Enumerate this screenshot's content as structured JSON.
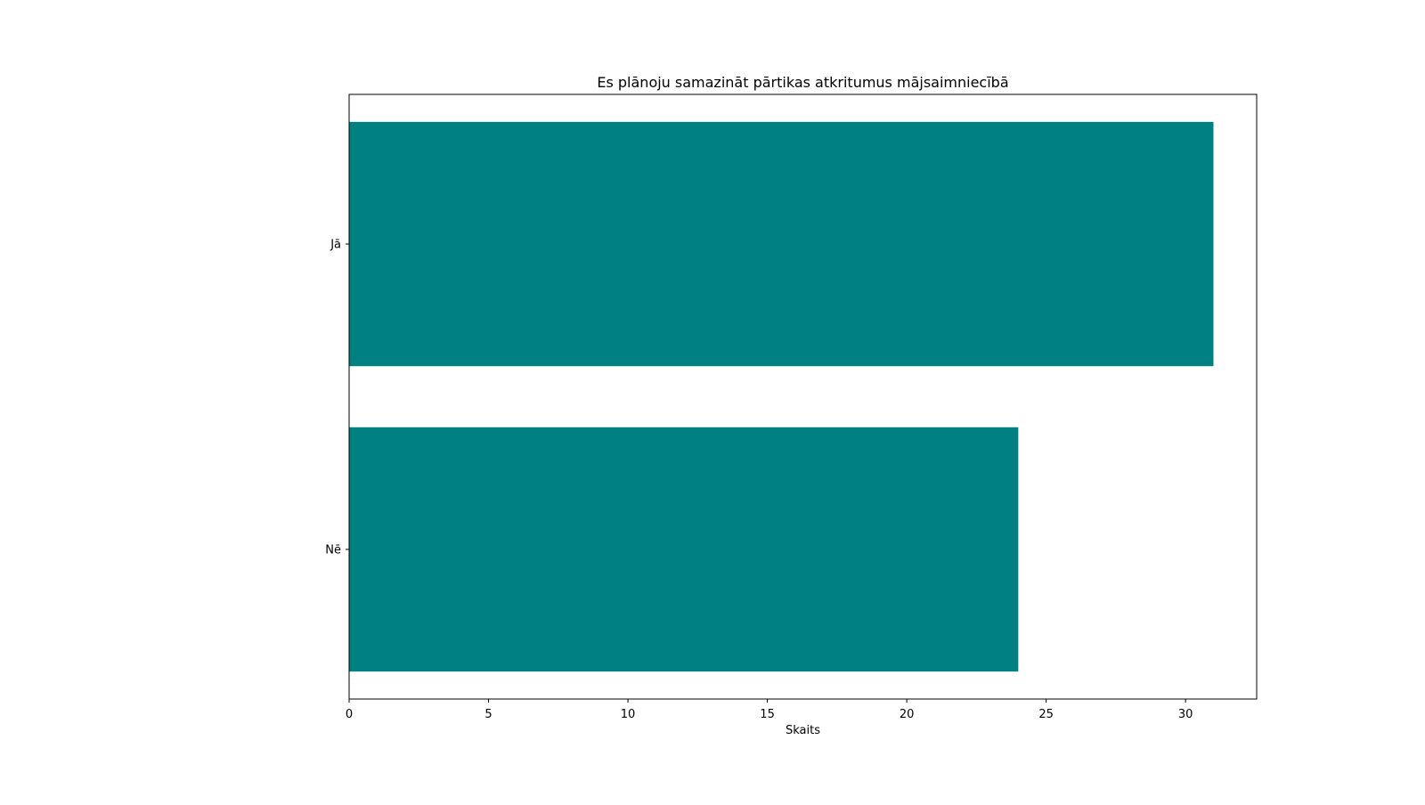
{
  "chart_data": {
    "type": "bar",
    "orientation": "horizontal",
    "title": "Es plānoju samazināt pārtikas atkritumus mājsaimniecībā",
    "xlabel": "Skaits",
    "ylabel": "",
    "categories": [
      "Jā",
      "Nē"
    ],
    "values": [
      31,
      24
    ],
    "xlim": [
      0,
      32.55
    ],
    "xticks": [
      0,
      5,
      10,
      15,
      20,
      25,
      30
    ],
    "grid": false,
    "legend": "none",
    "bar_color": "#008080"
  }
}
